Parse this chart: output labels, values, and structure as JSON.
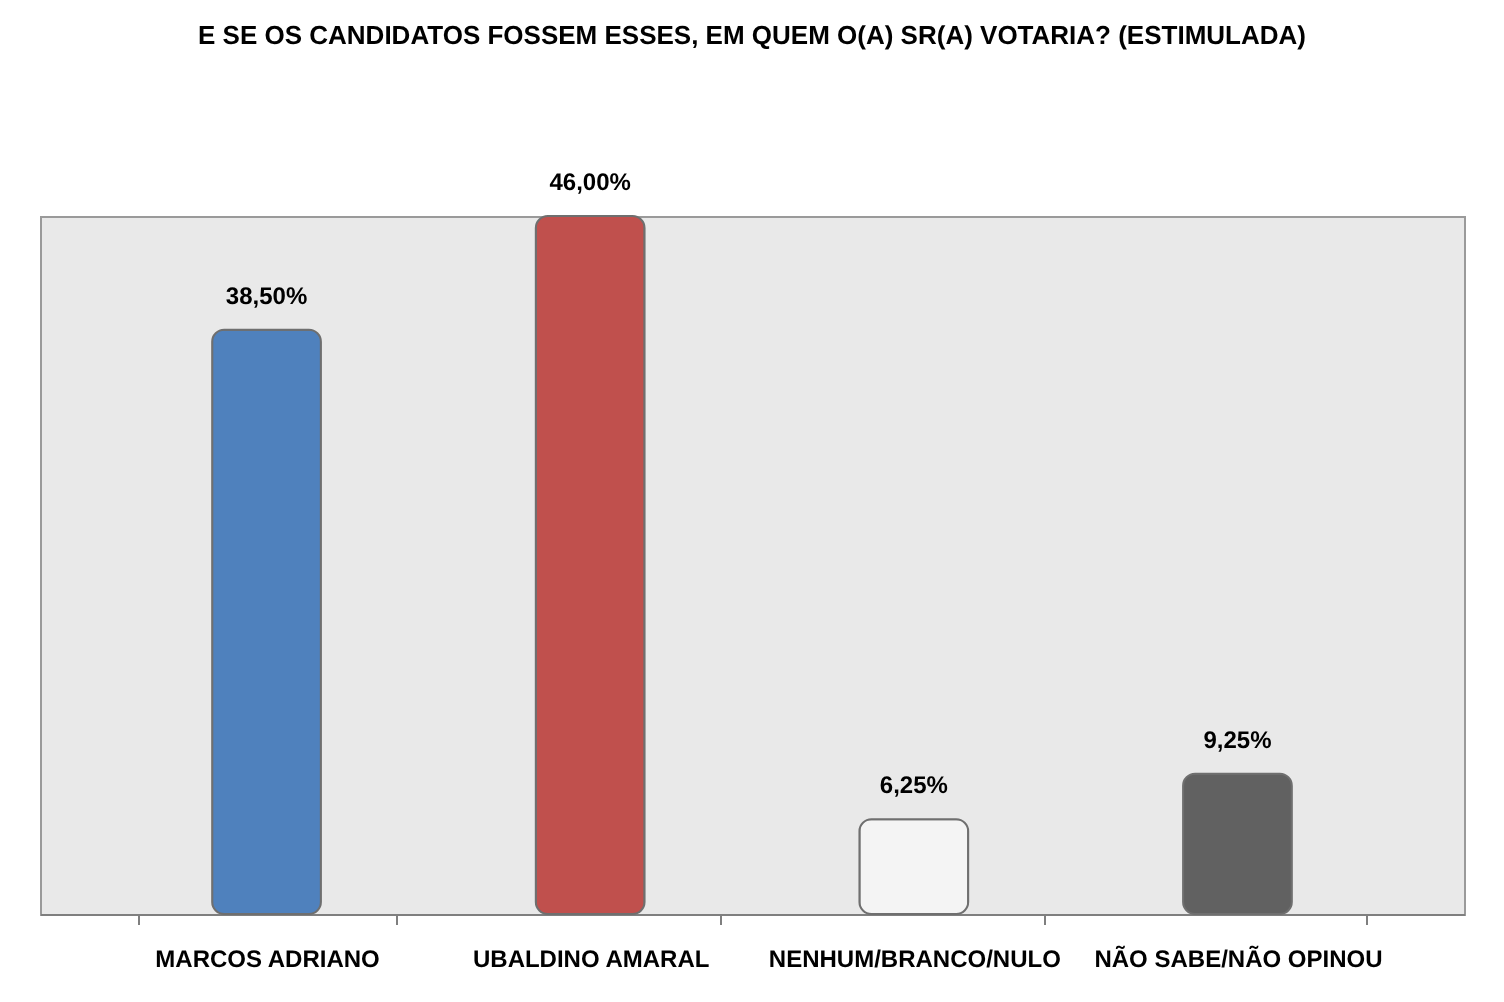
{
  "chart_data": {
    "type": "bar",
    "title": "E SE OS CANDIDATOS FOSSEM ESSES, EM QUEM O(A) SR(A) VOTARIA? (ESTIMULADA)",
    "categories": [
      "MARCOS ADRIANO",
      "UBALDINO AMARAL",
      "NENHUM/BRANCO/NULO",
      "NÃO SABE/NÃO OPINOU"
    ],
    "values": [
      38.5,
      46,
      6.25,
      9.25
    ],
    "value_labels": [
      "38,50%",
      "46,00%",
      "6,25%",
      "9,25%"
    ],
    "colors": [
      "#4f81bd",
      "#c0504d",
      "#f4f4f4",
      "#616161"
    ]
  }
}
